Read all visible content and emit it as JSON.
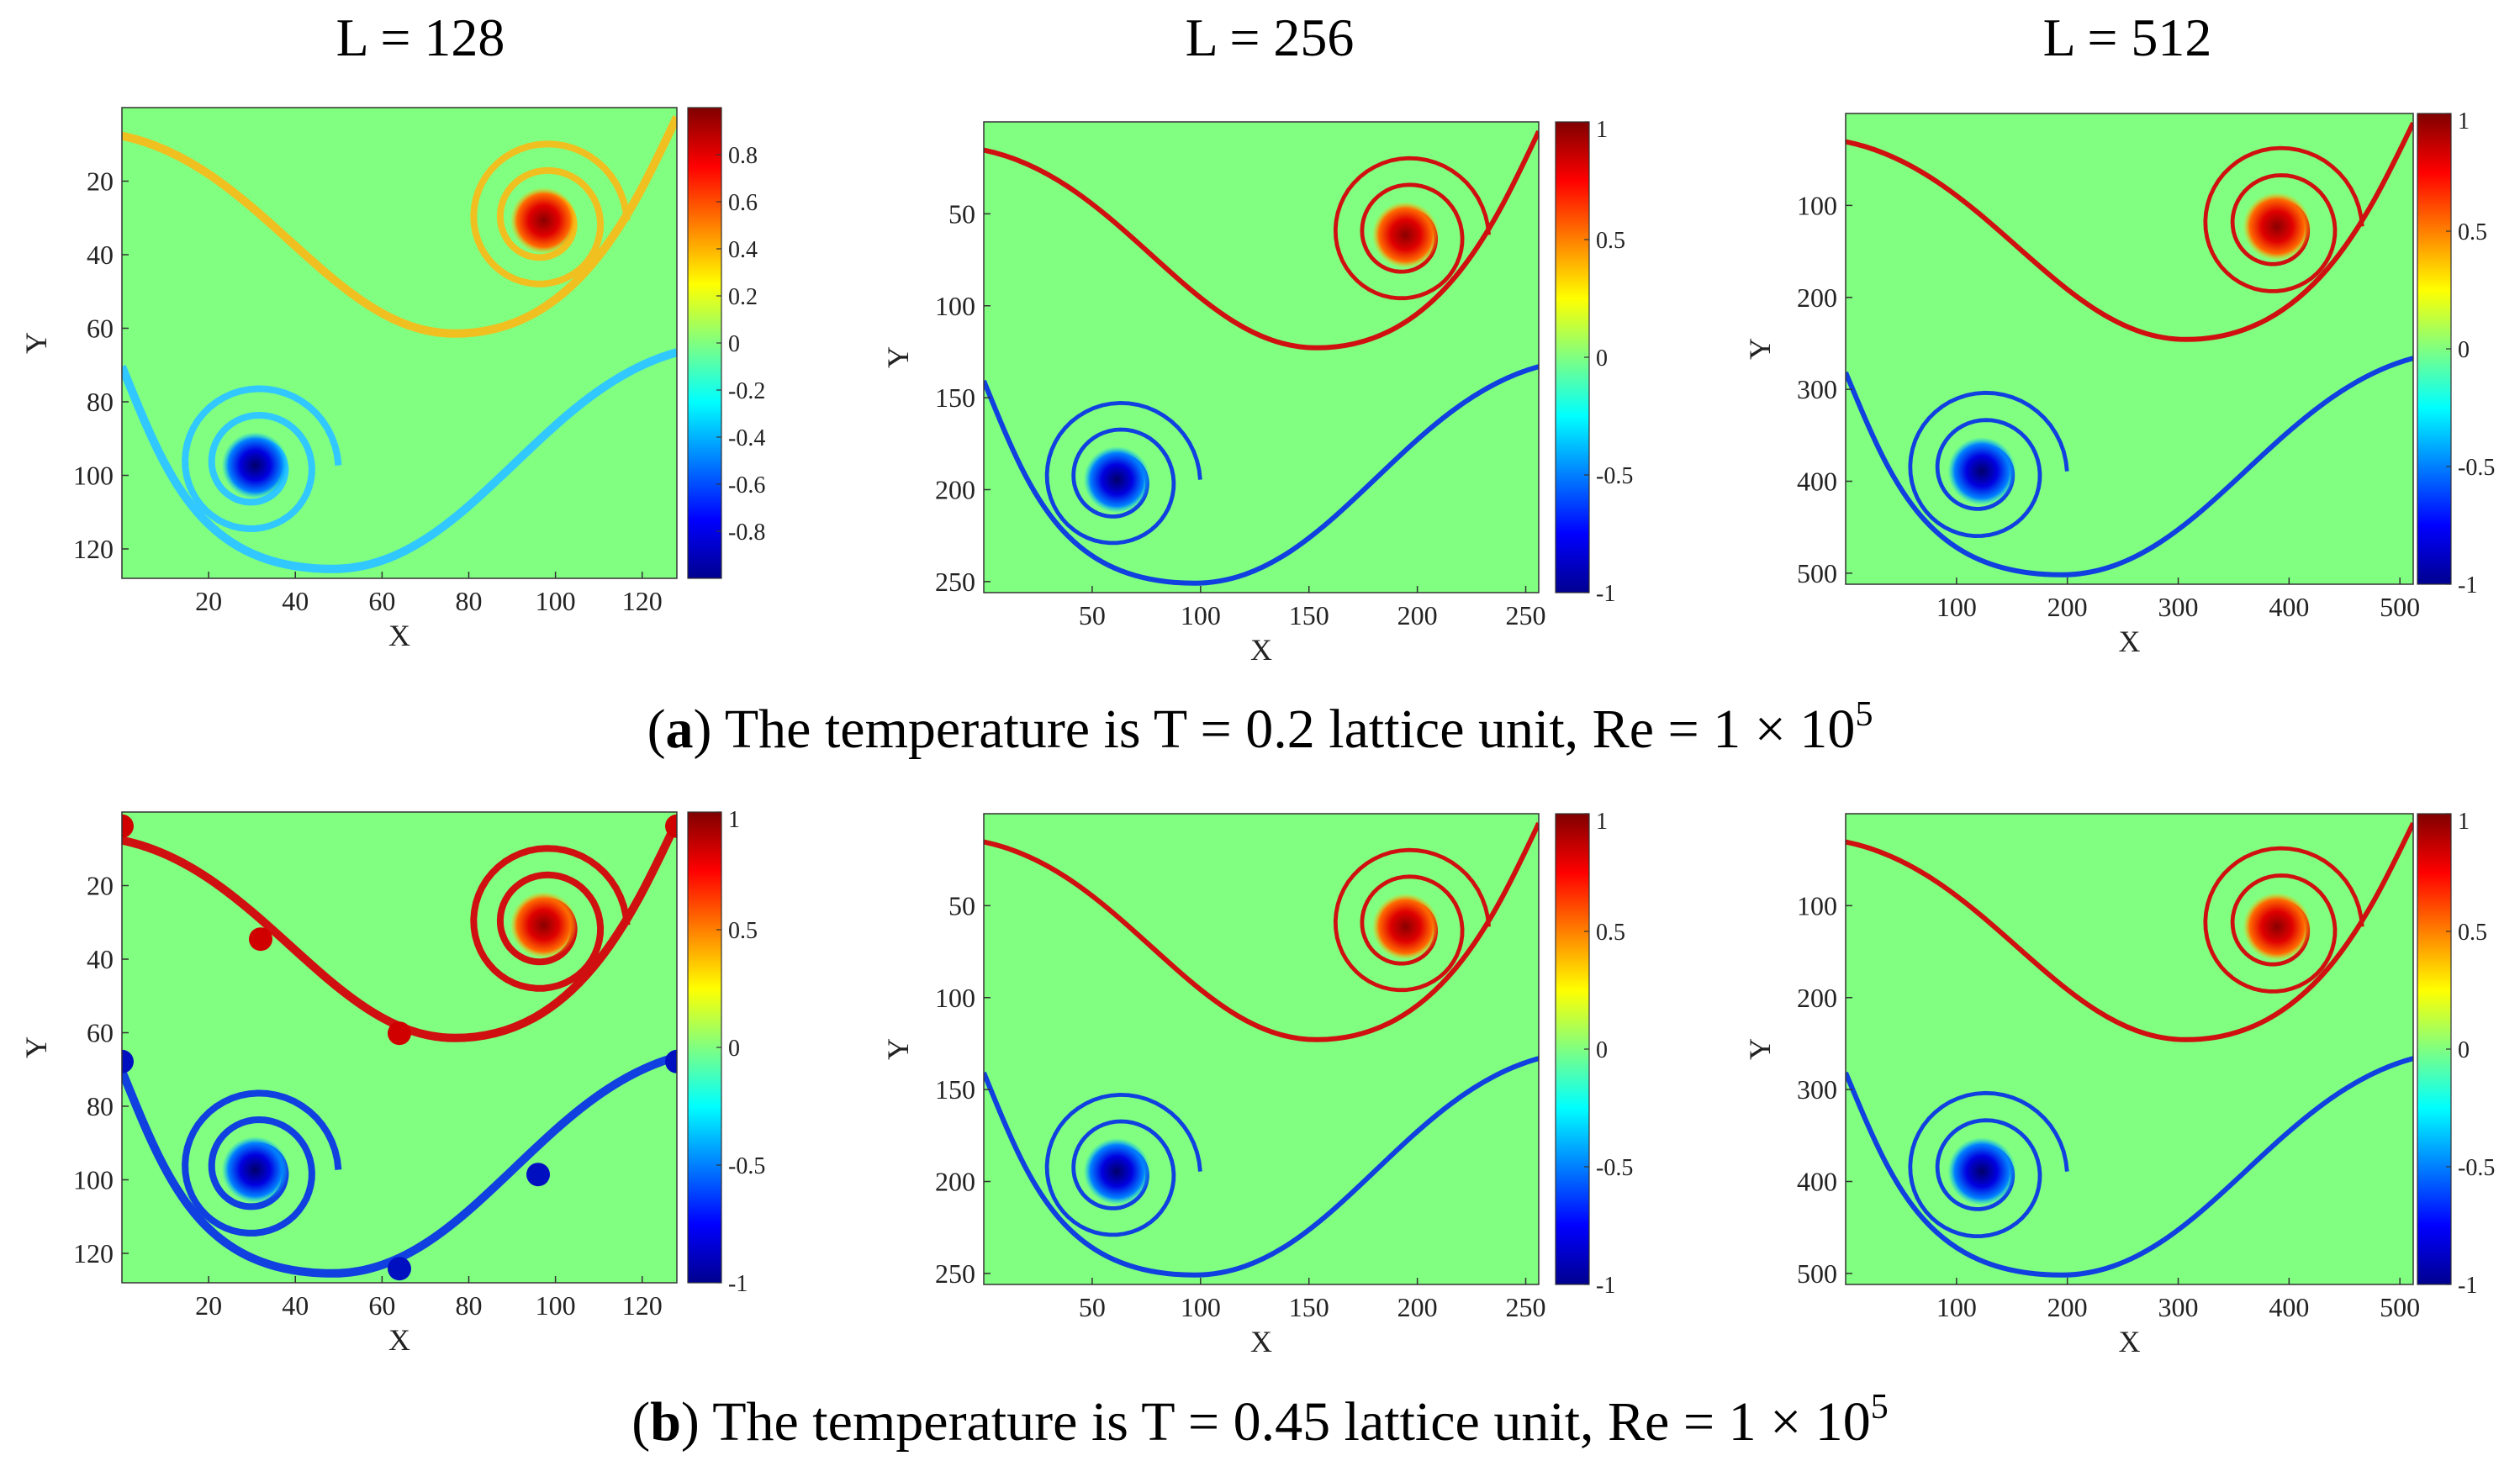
{
  "figure": {
    "column_titles": [
      "L = 128",
      "L = 256",
      "L = 512"
    ],
    "caption_a": {
      "letter": "a",
      "text": " The temperature is T = 0.2 lattice unit, Re = 1 × 10",
      "exponent": "5",
      "open": "(",
      "close": ")"
    },
    "caption_b": {
      "letter": "b",
      "text": " The temperature is T = 0.45 lattice unit, Re = 1 × 10",
      "exponent": "5",
      "open": "(",
      "close": ")"
    }
  },
  "colors": {
    "background_field": "#80ff80",
    "hot": "#d01010",
    "cold": "#1040e0"
  },
  "chart_data": [
    {
      "type": "heatmap",
      "row": "a",
      "L": 128,
      "xlabel": "X",
      "ylabel": "Y",
      "xlim": [
        1,
        128
      ],
      "ylim": [
        1,
        128
      ],
      "xticks": [
        "20",
        "40",
        "60",
        "80",
        "100",
        "120"
      ],
      "yticks": [
        "20",
        "40",
        "60",
        "80",
        "100",
        "120"
      ],
      "colorbar": {
        "range": [
          -1,
          1
        ],
        "ticks": [
          "0.8",
          "0.6",
          "0.4",
          "0.2",
          "0",
          "-0.2",
          "-0.4",
          "-0.6",
          "-0.8"
        ]
      }
    },
    {
      "type": "heatmap",
      "row": "a",
      "L": 256,
      "xlabel": "X",
      "ylabel": "Y",
      "xlim": [
        1,
        256
      ],
      "ylim": [
        1,
        256
      ],
      "xticks": [
        "50",
        "100",
        "150",
        "200",
        "250"
      ],
      "yticks": [
        "50",
        "100",
        "150",
        "200",
        "250"
      ],
      "colorbar": {
        "range": [
          -1,
          1
        ],
        "ticks": [
          "1",
          "0.5",
          "0",
          "-0.5",
          "-1"
        ]
      }
    },
    {
      "type": "heatmap",
      "row": "a",
      "L": 512,
      "xlabel": "X",
      "ylabel": "Y",
      "xlim": [
        1,
        512
      ],
      "ylim": [
        1,
        512
      ],
      "xticks": [
        "100",
        "200",
        "300",
        "400",
        "500"
      ],
      "yticks": [
        "100",
        "200",
        "300",
        "400",
        "500"
      ],
      "colorbar": {
        "range": [
          -1,
          1
        ],
        "ticks": [
          "1",
          "0.5",
          "0",
          "-0.5",
          "-1"
        ]
      }
    },
    {
      "type": "heatmap",
      "row": "b",
      "L": 128,
      "xlabel": "X",
      "ylabel": "Y",
      "xlim": [
        1,
        128
      ],
      "ylim": [
        1,
        128
      ],
      "xticks": [
        "20",
        "40",
        "60",
        "80",
        "100",
        "120"
      ],
      "yticks": [
        "20",
        "40",
        "60",
        "80",
        "100",
        "120"
      ],
      "colorbar": {
        "range": [
          -1,
          1
        ],
        "ticks": [
          "1",
          "0.5",
          "0",
          "-0.5",
          "-1"
        ]
      }
    },
    {
      "type": "heatmap",
      "row": "b",
      "L": 256,
      "xlabel": "X",
      "ylabel": "Y",
      "xlim": [
        1,
        256
      ],
      "ylim": [
        1,
        256
      ],
      "xticks": [
        "50",
        "100",
        "150",
        "200",
        "250"
      ],
      "yticks": [
        "50",
        "100",
        "150",
        "200",
        "250"
      ],
      "colorbar": {
        "range": [
          -1,
          1
        ],
        "ticks": [
          "1",
          "0.5",
          "0",
          "-0.5",
          "-1"
        ]
      }
    },
    {
      "type": "heatmap",
      "row": "b",
      "L": 512,
      "xlabel": "X",
      "ylabel": "Y",
      "xlim": [
        1,
        512
      ],
      "ylim": [
        1,
        512
      ],
      "xticks": [
        "100",
        "200",
        "300",
        "400",
        "500"
      ],
      "yticks": [
        "100",
        "200",
        "300",
        "400",
        "500"
      ],
      "colorbar": {
        "range": [
          -1,
          1
        ],
        "ticks": [
          "1",
          "0.5",
          "0",
          "-0.5",
          "-1"
        ]
      }
    }
  ]
}
